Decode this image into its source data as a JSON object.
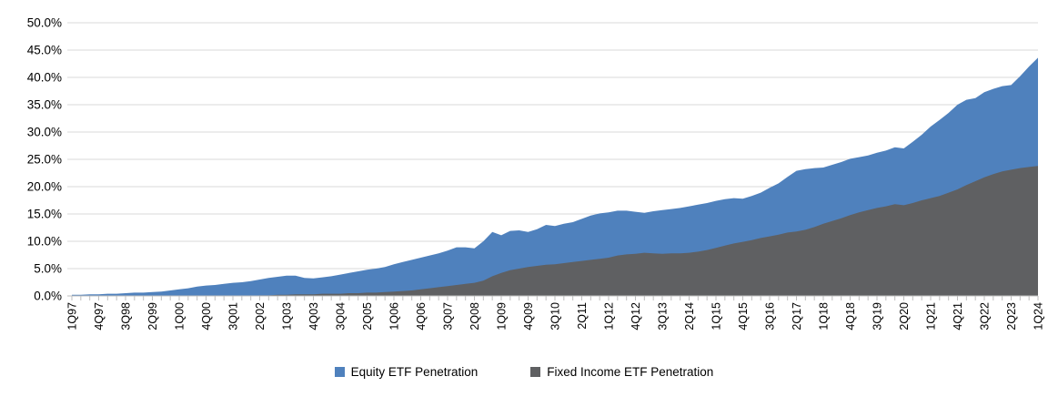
{
  "chart_data": {
    "type": "area",
    "area_mode": "overlap",
    "x_start": "1Q97",
    "x_end": "1Q24",
    "x_frequency": "quarterly",
    "x_tick_interval": 3,
    "x_labels": [
      "1Q97",
      "4Q97",
      "3Q98",
      "2Q99",
      "1Q00",
      "4Q00",
      "3Q01",
      "2Q02",
      "1Q03",
      "4Q03",
      "3Q04",
      "2Q05",
      "1Q06",
      "4Q06",
      "3Q07",
      "2Q08",
      "1Q09",
      "4Q09",
      "3Q10",
      "2Q11",
      "1Q12",
      "4Q12",
      "3Q13",
      "2Q14",
      "1Q15",
      "4Q15",
      "3Q16",
      "2Q17",
      "1Q18",
      "4Q18",
      "3Q19",
      "2Q20",
      "1Q21",
      "4Q21",
      "3Q22",
      "2Q23",
      "1Q24"
    ],
    "axis": {
      "ylim": [
        0,
        50
      ],
      "ytick_step": 5,
      "ytick_format": "percent_1dp",
      "grid": "horizontal"
    },
    "legend_position": "bottom-center",
    "colors": {
      "gridline": "#D9D9D9",
      "axis": "#BFBFBF",
      "text": "#000000"
    },
    "series": [
      {
        "name": "Equity ETF Penetration",
        "color": "#4F81BD",
        "values": [
          0.2,
          0.2,
          0.3,
          0.3,
          0.4,
          0.4,
          0.5,
          0.6,
          0.6,
          0.7,
          0.8,
          1.0,
          1.2,
          1.4,
          1.7,
          1.9,
          2.0,
          2.2,
          2.4,
          2.5,
          2.7,
          3.0,
          3.3,
          3.5,
          3.7,
          3.7,
          3.3,
          3.2,
          3.4,
          3.6,
          3.9,
          4.2,
          4.5,
          4.8,
          5.0,
          5.3,
          5.8,
          6.2,
          6.6,
          7.0,
          7.4,
          7.8,
          8.3,
          8.9,
          8.9,
          8.7,
          10.0,
          11.7,
          11.1,
          11.9,
          12.0,
          11.7,
          12.2,
          13.0,
          12.8,
          13.2,
          13.5,
          14.1,
          14.7,
          15.1,
          15.3,
          15.6,
          15.6,
          15.4,
          15.2,
          15.5,
          15.7,
          15.9,
          16.1,
          16.4,
          16.7,
          17.0,
          17.4,
          17.7,
          17.9,
          17.8,
          18.3,
          18.9,
          19.8,
          20.6,
          21.8,
          22.9,
          23.2,
          23.4,
          23.5,
          24.0,
          24.5,
          25.1,
          25.4,
          25.7,
          26.2,
          26.6,
          27.2,
          27.0,
          28.2,
          29.5,
          31.0,
          32.2,
          33.5,
          35.0,
          35.9,
          36.2,
          37.3,
          37.9,
          38.4,
          38.6,
          40.2,
          42.0,
          43.6
        ]
      },
      {
        "name": "Fixed Income ETF Penetration",
        "color": "#5F6062",
        "values": [
          0,
          0,
          0,
          0,
          0,
          0,
          0,
          0,
          0,
          0,
          0,
          0,
          0,
          0,
          0,
          0,
          0,
          0,
          0,
          0,
          0.0,
          0.1,
          0.1,
          0.2,
          0.2,
          0.3,
          0.3,
          0.3,
          0.4,
          0.4,
          0.4,
          0.5,
          0.5,
          0.6,
          0.6,
          0.7,
          0.8,
          0.9,
          1.0,
          1.2,
          1.4,
          1.6,
          1.8,
          2.0,
          2.2,
          2.4,
          2.8,
          3.6,
          4.2,
          4.7,
          5.0,
          5.3,
          5.5,
          5.7,
          5.8,
          6.0,
          6.2,
          6.4,
          6.6,
          6.8,
          7.0,
          7.4,
          7.6,
          7.7,
          7.9,
          7.8,
          7.7,
          7.8,
          7.8,
          7.9,
          8.1,
          8.4,
          8.8,
          9.2,
          9.6,
          9.9,
          10.2,
          10.6,
          10.9,
          11.2,
          11.6,
          11.8,
          12.1,
          12.6,
          13.2,
          13.7,
          14.2,
          14.8,
          15.3,
          15.7,
          16.1,
          16.4,
          16.8,
          16.6,
          17.0,
          17.5,
          17.9,
          18.3,
          18.9,
          19.5,
          20.3,
          21.0,
          21.7,
          22.3,
          22.8,
          23.1,
          23.4,
          23.6,
          23.8
        ]
      }
    ]
  },
  "y_axis": {
    "tick_labels": [
      "50.0%",
      "45.0%",
      "40.0%",
      "35.0%",
      "30.0%",
      "25.0%",
      "20.0%",
      "15.0%",
      "10.0%",
      "5.0%",
      "0.0%"
    ]
  }
}
